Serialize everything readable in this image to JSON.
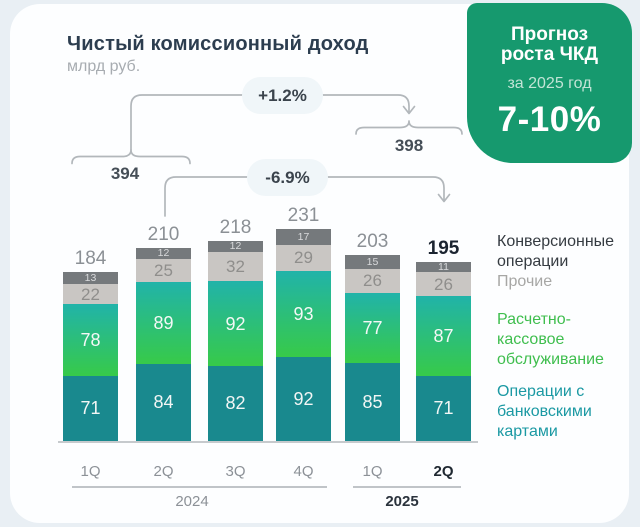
{
  "title": "Чистый комиссионный доход",
  "subtitle": "млрд руб.",
  "forecast_box": {
    "title": "Прогноз\nроста ЧКД",
    "period": "за 2025 год",
    "value": "7-10%",
    "bg_color": "#16996e"
  },
  "annotations": {
    "h1_2024_total": "394",
    "h1_2025_total": "398",
    "h1_vs_h1_change": "+1.2%",
    "q2_vs_q2_change": "-6.9%"
  },
  "chart_data": {
    "type": "bar",
    "subtype": "stacked",
    "unit": "млрд руб.",
    "categories": [
      "1Q 2024",
      "2Q 2024",
      "3Q 2024",
      "4Q 2024",
      "1Q 2025",
      "2Q 2025"
    ],
    "x_labels": [
      "1Q",
      "2Q",
      "3Q",
      "4Q",
      "1Q",
      "2Q"
    ],
    "groups": [
      {
        "year": "2024",
        "quarters": [
          "1Q",
          "2Q",
          "3Q",
          "4Q"
        ]
      },
      {
        "year": "2025",
        "quarters": [
          "1Q",
          "2Q"
        ]
      }
    ],
    "totals": [
      184,
      210,
      218,
      231,
      203,
      195
    ],
    "series": [
      {
        "name": "Операции с банковскими картами",
        "color": "#19898e",
        "values": [
          71,
          84,
          82,
          92,
          85,
          71
        ]
      },
      {
        "name": "Расчетно-кассовое обслуживание",
        "color_top": "#21b3a9",
        "color_bottom": "#37ca49",
        "values": [
          78,
          89,
          92,
          93,
          77,
          87
        ]
      },
      {
        "name": "Прочие",
        "color": "#c9c6c3",
        "values": [
          22,
          25,
          32,
          29,
          26,
          26
        ]
      },
      {
        "name": "Конверсионные операции",
        "color": "#75797c",
        "values": [
          13,
          12,
          12,
          17,
          15,
          11
        ]
      }
    ],
    "highlighted_category": "2Q 2025",
    "legend_position": "right",
    "grid": false
  },
  "legend": [
    {
      "label": "Конверсионные операции",
      "color": "#353b41"
    },
    {
      "label": "Прочие",
      "color": "#a7a7a5"
    },
    {
      "label": "Расчетно-кассовое обслуживание",
      "color": "#3fbe4e"
    },
    {
      "label": "Операции с банковскими картами",
      "color": "#1b99a3"
    }
  ],
  "x_axis": {
    "year_2024": "2024",
    "year_2025": "2025"
  }
}
